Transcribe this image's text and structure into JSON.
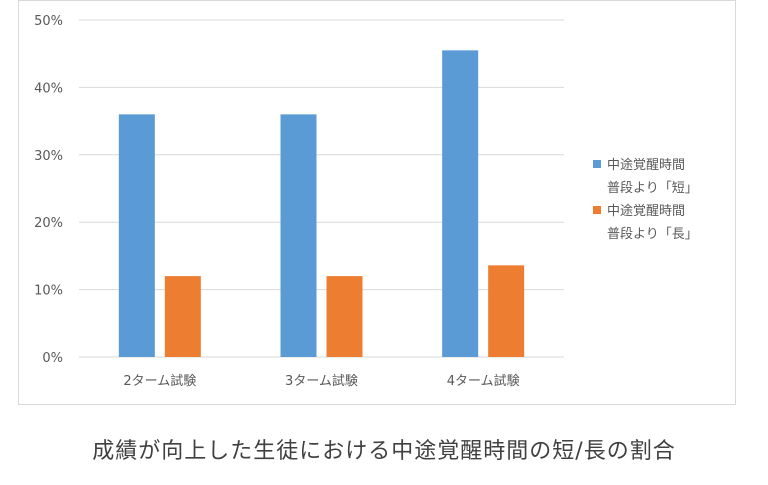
{
  "chart_data": {
    "type": "bar",
    "categories": [
      "2ターム試験",
      "3ターム試験",
      "4ターム試験"
    ],
    "series": [
      {
        "name": "中途覚醒時間\n普段より「短」",
        "values": [
          36,
          36,
          45.5
        ],
        "color": "#5b9bd5"
      },
      {
        "name": "中途覚醒時間\n普段より「長」",
        "values": [
          12,
          12,
          13.6
        ],
        "color": "#ed7d31"
      }
    ],
    "ylim": [
      0,
      50
    ],
    "yticks": [
      "0%",
      "10%",
      "20%",
      "30%",
      "40%",
      "50%"
    ],
    "grid": true,
    "legend": "right",
    "title": "",
    "xlabel": "",
    "ylabel": ""
  },
  "caption": "成績が向上した生徒における中途覚醒時間の短/長の割合"
}
